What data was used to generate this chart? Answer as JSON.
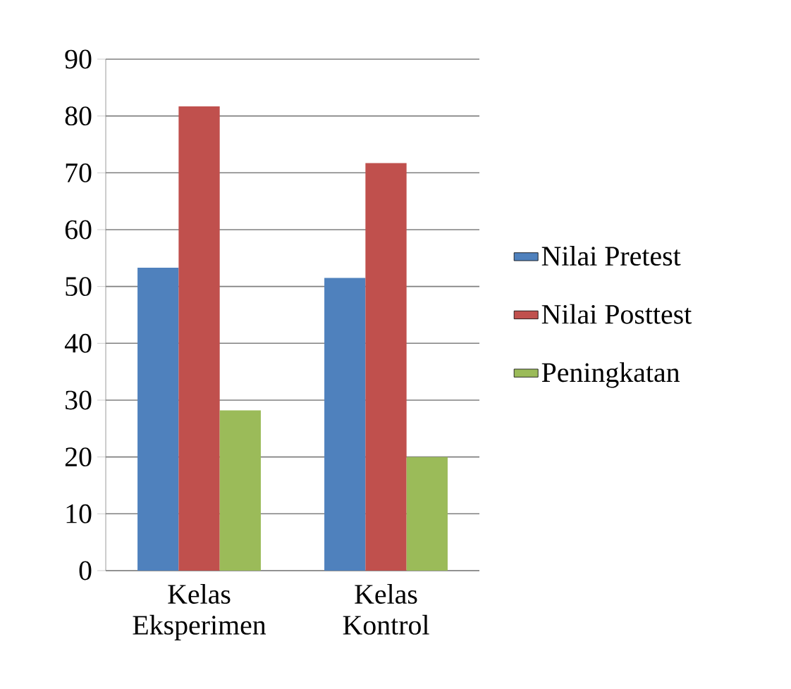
{
  "chart_data": {
    "type": "bar",
    "categories": [
      "Kelas Eksperimen",
      "Kelas Kontrol"
    ],
    "series": [
      {
        "name": "Nilai Pretest",
        "color": "#4f81bd",
        "values": [
          53.3,
          51.5
        ]
      },
      {
        "name": "Nilai Posttest",
        "color": "#c0504d",
        "values": [
          81.7,
          71.7
        ]
      },
      {
        "name": "Peningkatan",
        "color": "#9bbb59",
        "values": [
          28.2,
          20.0
        ]
      }
    ],
    "ylim": [
      0,
      90
    ],
    "yticks": [
      0,
      10,
      20,
      30,
      40,
      50,
      60,
      70,
      80,
      90
    ],
    "grid": "y",
    "legend": "right"
  }
}
